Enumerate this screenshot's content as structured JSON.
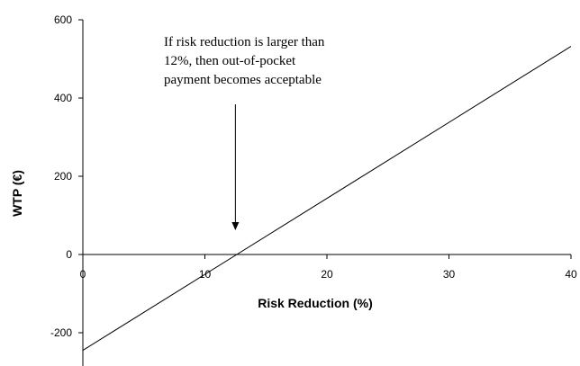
{
  "chart_data": {
    "type": "line",
    "title": "",
    "xlabel": "Risk Reduction (%)",
    "ylabel": "WTP (€)",
    "xlim": [
      0,
      40
    ],
    "ylim": [
      -300,
      600
    ],
    "x_ticks": [
      0,
      10,
      20,
      30,
      40
    ],
    "y_ticks": [
      -200,
      0,
      200,
      400,
      600
    ],
    "x_tick_labels": [
      "0",
      "10",
      "20",
      "30",
      "40"
    ],
    "y_tick_labels": [
      "-200",
      "0",
      "200",
      "400",
      "600"
    ],
    "grid": false,
    "legend": "none",
    "series": [
      {
        "x": [
          0,
          40
        ],
        "y": [
          -245,
          532
        ],
        "color": "#000000"
      }
    ],
    "annotation": {
      "lines": [
        "If risk reduction is larger than",
        "12%, then out-of-pocket",
        "payment becomes acceptable"
      ],
      "arrow_target": {
        "x": 12.5,
        "y": 0
      }
    }
  }
}
